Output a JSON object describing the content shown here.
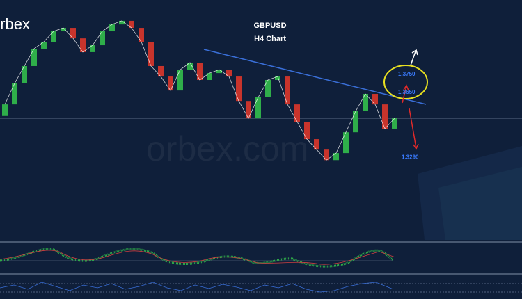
{
  "chart_data": {
    "type": "candlestick",
    "logo": "orbex",
    "watermark": "orbex.com",
    "title": "GBPUSD",
    "subtitle": "H4 Chart",
    "open": [
      1.352,
      1.3584,
      1.37,
      1.3796,
      1.3892,
      1.393,
      1.3988,
      1.4007,
      1.3949,
      1.3873,
      1.3911,
      1.3988,
      1.4026,
      1.4046,
      1.4007,
      1.393,
      1.3796,
      1.3738,
      1.3661,
      1.3776,
      1.3815,
      1.3719,
      1.3757,
      1.3776,
      1.3738,
      1.3603,
      1.3507,
      1.3623,
      1.3719,
      1.3738,
      1.3584,
      1.3488,
      1.3392,
      1.3334,
      1.3276,
      1.3315,
      1.343,
      1.3546,
      1.3642,
      1.3584,
      1.345
    ],
    "close": [
      1.3584,
      1.37,
      1.3796,
      1.3892,
      1.393,
      1.3988,
      1.4007,
      1.3949,
      1.3873,
      1.3911,
      1.3988,
      1.4026,
      1.4046,
      1.4007,
      1.393,
      1.3796,
      1.3738,
      1.3661,
      1.3776,
      1.3815,
      1.3719,
      1.3757,
      1.3776,
      1.3738,
      1.3603,
      1.3507,
      1.3623,
      1.3719,
      1.3738,
      1.3584,
      1.3488,
      1.3392,
      1.3334,
      1.3276,
      1.3315,
      1.343,
      1.3546,
      1.3642,
      1.3584,
      1.345,
      1.3507
    ],
    "colors": {
      "up": "#2fae4a",
      "down": "#c8342c"
    },
    "ylim": [
      1.2835,
      1.4161
    ],
    "levels": [
      {
        "value": 1.375,
        "label": "1.3750"
      },
      {
        "value": 1.365,
        "label": "1.3650"
      },
      {
        "value": 1.329,
        "label": "1.3290"
      }
    ]
  }
}
